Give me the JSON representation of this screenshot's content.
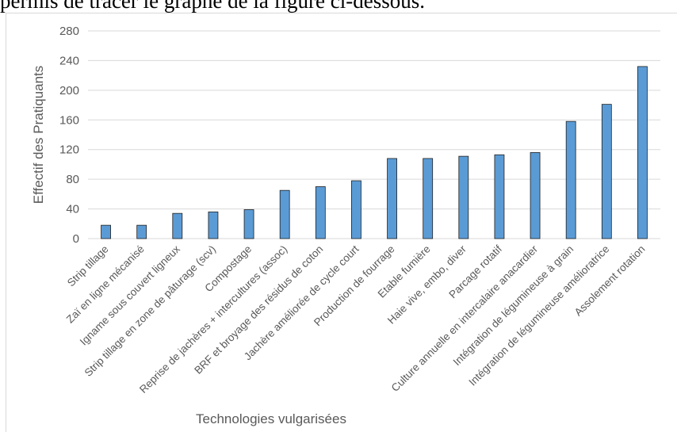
{
  "caption": "permis de tracer le graphe de la figure ci-dessous.",
  "chart_data": {
    "type": "bar",
    "title": "",
    "xlabel": "Technologies vulgarisées",
    "ylabel": "Effectif des Pratiquants",
    "ylim": [
      0,
      280
    ],
    "yticks": [
      0,
      40,
      80,
      120,
      160,
      200,
      240,
      280
    ],
    "grid": true,
    "categories": [
      "Strip tillage",
      "Zaï en ligne mécanisé",
      "Igname sous couvert ligneux",
      "Strip tillage en zone de pâturage (scv)",
      "Compostage",
      "Reprise de jachères + intercultures (assoc)",
      "BRF et broyage des résidus de coton",
      "Jachère améliorée de cycle court",
      "Production de fourrage",
      "Etable fumière",
      "Haie vive, embo, diver",
      "Parcage rotatif",
      "Culture annuelle en intercalaire anacardier",
      "Intégration de légumineuse à grain",
      "Intégration de légumineuse amélioratrice",
      "Assolement rotation"
    ],
    "values": [
      18,
      18,
      34,
      36,
      39,
      65,
      70,
      78,
      108,
      108,
      111,
      113,
      116,
      158,
      181,
      232
    ],
    "colors": {
      "bar": "#5b9bd5",
      "bar_edge": "#1f1f1f",
      "grid": "#d9d9d9",
      "text": "#595959"
    }
  }
}
